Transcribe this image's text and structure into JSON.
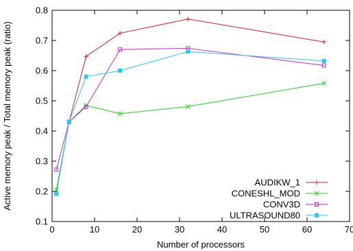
{
  "chart_data": {
    "type": "line",
    "title": "",
    "xlabel": "Number of processors",
    "ylabel": "Active memory peak / Total memory peak (ratio)",
    "xlim": [
      0,
      70
    ],
    "ylim": [
      0.1,
      0.8
    ],
    "x_ticks": [
      "0",
      "10",
      "20",
      "30",
      "40",
      "50",
      "60",
      "70"
    ],
    "y_ticks": [
      "0.1",
      "0.2",
      "0.3",
      "0.4",
      "0.5",
      "0.6",
      "0.7",
      "0.8"
    ],
    "grid": false,
    "legend_position": "bottom-right",
    "series": [
      {
        "name": "AUDIKW_1",
        "color": "#e41a1c",
        "marker": "plus",
        "x": [
          1,
          4,
          8,
          16,
          32,
          64
        ],
        "y": [
          0.195,
          0.43,
          0.647,
          0.724,
          0.771,
          0.695
        ]
      },
      {
        "name": "CONESHL_MOD",
        "color": "#22cc22",
        "marker": "cross",
        "x": [
          1,
          4,
          8,
          16,
          32,
          64
        ],
        "y": [
          0.205,
          0.43,
          0.485,
          0.457,
          0.481,
          0.558
        ]
      },
      {
        "name": "CONV3D",
        "color": "#cc22cc",
        "marker": "square-open",
        "x": [
          1,
          4,
          8,
          16,
          32,
          64
        ],
        "y": [
          0.272,
          0.43,
          0.48,
          0.67,
          0.674,
          0.617
        ]
      },
      {
        "name": "ULTRASOUND80",
        "color": "#22ccee",
        "marker": "square-filled",
        "x": [
          1,
          4,
          8,
          16,
          32,
          64
        ],
        "y": [
          0.192,
          0.43,
          0.58,
          0.6,
          0.663,
          0.632
        ]
      }
    ]
  }
}
